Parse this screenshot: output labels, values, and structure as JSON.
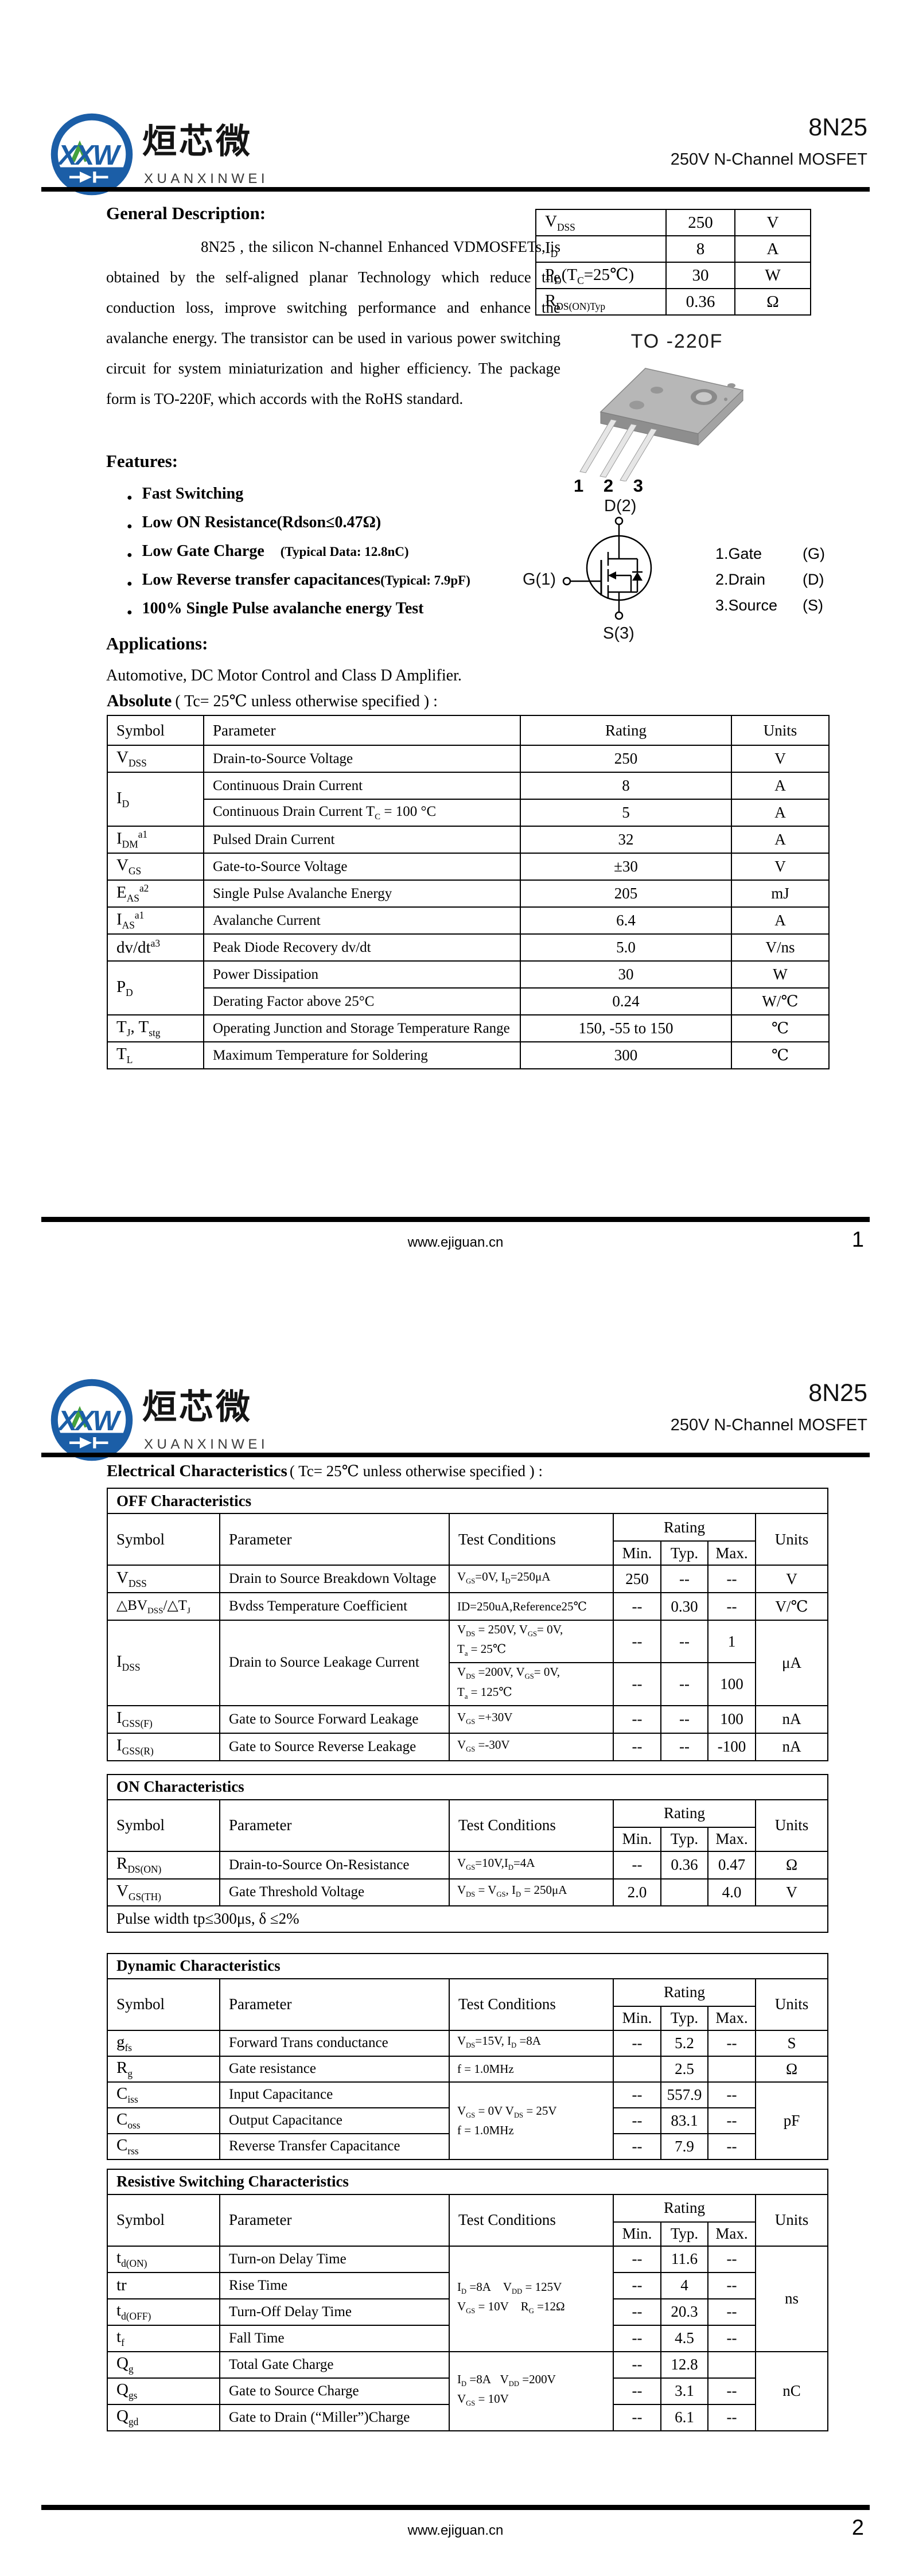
{
  "header": {
    "brand_cn": "烜芯微",
    "brand_en": "XUANXINWEI",
    "logo_text": "XXW",
    "part_number": "8N25",
    "subtitle": "250V N-Channel MOSFET"
  },
  "footer": {
    "url": "www.ejiguan.cn"
  },
  "page1": {
    "page_number": "1",
    "general_title": "General Description:",
    "general_text": "8N25 , the silicon N-channel Enhanced VDMOSFETs, is obtained by the self-aligned planar Technology which reduce the conduction loss, improve switching performance and enhance the avalanche energy. The transistor can be used in various power switching circuit for system miniaturization and higher efficiency. The package form is TO-220F, which accords with the RoHS standard.",
    "features_title": "Features:",
    "features": [
      "Fast Switching",
      "Low ON Resistance(Rdson≤0.47Ω)",
      "Low Gate Charge&nbsp;&nbsp;&nbsp;&nbsp;<span class=\"fsm\">(Typical Data: 12.8nC)</span>",
      "Low Reverse transfer capacitances<span class=\"fsm\">(Typical: 7.9pF)</span>",
      "100% Single Pulse avalanche energy Test"
    ],
    "applications_title": "Applications:",
    "applications_text": "Automotive, DC Motor Control and Class D Amplifier.",
    "absolute_title": "Absolute",
    "absolute_cond": "( Tc= 25℃  unless otherwise specified ) :",
    "package": {
      "name": "TO -220F",
      "pins": "1 2 3",
      "drain": "D(2)",
      "gate": "G(1)",
      "source": "S(3)",
      "legend": [
        {
          "pin": "1.Gate",
          "sym": "(G)"
        },
        {
          "pin": "2.Drain",
          "sym": "(D)"
        },
        {
          "pin": "3.Source",
          "sym": "(S)"
        }
      ]
    },
    "quick_table": {
      "cols": [
        227,
        120,
        132
      ],
      "rows": [
        {
          "h": 46,
          "cells": [
            {
              "t": "V<sub>DSS</sub>",
              "cl": "sym"
            },
            "250",
            "V"
          ]
        },
        {
          "h": 46,
          "cells": [
            {
              "t": "I<sub>D</sub>",
              "cl": "sym"
            },
            "8",
            "A"
          ]
        },
        {
          "h": 46,
          "cells": [
            {
              "t": "P<sub>D</sub>(T<sub>C</sub>=25℃)",
              "cl": "sym"
            },
            "30",
            "W"
          ]
        },
        {
          "h": 46,
          "cells": [
            {
              "t": "R<sub>DS(ON)Typ</sub>",
              "cl": "sym"
            },
            "0.36",
            "Ω"
          ]
        }
      ]
    },
    "absolute_table": {
      "cols": [
        168,
        552,
        368,
        170
      ],
      "rows": [
        {
          "h": 52,
          "cells": [
            {
              "t": "Symbol",
              "cl": "hdl"
            },
            {
              "t": "Parameter",
              "cl": "hdl"
            },
            "Rating",
            "Units"
          ]
        },
        {
          "h": 47,
          "cells": [
            {
              "t": "V<sub>DSS</sub>",
              "cl": "sym"
            },
            {
              "t": "Drain-to-Source Voltage",
              "cl": "par"
            },
            "250",
            "V"
          ]
        },
        {
          "h": 47,
          "cells": [
            {
              "t": "I<sub>D</sub>",
              "cl": "sym",
              "rs": 2
            },
            {
              "t": "Continuous Drain Current",
              "cl": "par"
            },
            "8",
            "A"
          ]
        },
        {
          "h": 47,
          "cells": [
            {
              "t": "Continuous Drain Current T<sub>C</sub> = 100 °C",
              "cl": "par"
            },
            "5",
            "A"
          ]
        },
        {
          "h": 47,
          "cells": [
            {
              "t": "I<sub>DM</sub><sup>a1</sup>",
              "cl": "sym"
            },
            {
              "t": "Pulsed Drain Current",
              "cl": "par"
            },
            "32",
            "A"
          ]
        },
        {
          "h": 47,
          "cells": [
            {
              "t": "V<sub>GS</sub>",
              "cl": "sym"
            },
            {
              "t": "Gate-to-Source Voltage",
              "cl": "par"
            },
            "±30",
            "V"
          ]
        },
        {
          "h": 47,
          "cells": [
            {
              "t": "E<sub>AS</sub><sup>a2</sup>",
              "cl": "sym"
            },
            {
              "t": "Single Pulse Avalanche Energy",
              "cl": "par"
            },
            "205",
            "mJ"
          ]
        },
        {
          "h": 47,
          "cells": [
            {
              "t": "I<sub>AS</sub><sup>a1</sup>",
              "cl": "sym"
            },
            {
              "t": "Avalanche Current",
              "cl": "par"
            },
            "6.4",
            "A"
          ]
        },
        {
          "h": 47,
          "cells": [
            {
              "t": "dv/dt<sup>a3</sup>",
              "cl": "sym"
            },
            {
              "t": "Peak Diode Recovery dv/dt",
              "cl": "par"
            },
            "5.0",
            "V/ns"
          ]
        },
        {
          "h": 47,
          "cells": [
            {
              "t": "P<sub>D</sub>",
              "cl": "sym",
              "rs": 2
            },
            {
              "t": "Power Dissipation",
              "cl": "par"
            },
            "30",
            "W"
          ]
        },
        {
          "h": 47,
          "cells": [
            {
              "t": "Derating Factor above 25°C",
              "cl": "par"
            },
            "0.24",
            "W/℃"
          ]
        },
        {
          "h": 47,
          "cells": [
            {
              "t": "T<sub>J</sub>,  T<sub>stg</sub>",
              "cl": "sym"
            },
            {
              "t": "Operating Junction and Storage Temperature Range",
              "cl": "par"
            },
            "150,  -55 to 150",
            "℃"
          ]
        },
        {
          "h": 47,
          "cells": [
            {
              "t": "T<sub>L</sub>",
              "cl": "sym"
            },
            {
              "t": "Maximum Temperature for Soldering",
              "cl": "par"
            },
            "300",
            "℃"
          ]
        }
      ]
    }
  },
  "page2": {
    "page_number": "2",
    "elec_title": "Electrical Characteristics",
    "elec_cond": "( Tc= 25℃  unless otherwise specified ) :",
    "off_table": {
      "cols": [
        196,
        400,
        286,
        83,
        82,
        83,
        126
      ],
      "rows": [
        {
          "h": 44,
          "cells": [
            {
              "t": "OFF Characteristics",
              "cs": 7,
              "cl": "title"
            }
          ]
        },
        {
          "h": 48,
          "cells": [
            {
              "t": "Symbol",
              "cl": "hdl",
              "rs": 2
            },
            {
              "t": "Parameter",
              "cl": "hdl",
              "rs": 2
            },
            {
              "t": "Test Conditions",
              "cl": "hdl",
              "rs": 2
            },
            {
              "t": "Rating",
              "cs": 3
            },
            {
              "t": "Units",
              "rs": 2
            }
          ]
        },
        {
          "h": 42,
          "cells": [
            "Min.",
            "Typ.",
            "Max."
          ]
        },
        {
          "h": 48,
          "cells": [
            {
              "t": "V<sub>DSS</sub>",
              "cl": "sym"
            },
            {
              "t": "Drain to Source Breakdown Voltage",
              "cl": "par"
            },
            {
              "t": "V<sub>GS</sub>=0V, I<sub>D</sub>=250μA",
              "cl": "cond"
            },
            "250",
            "--",
            "--",
            "V"
          ]
        },
        {
          "h": 48,
          "cells": [
            {
              "t": "△BV<sub>DSS</sub>/△T<sub>J</sub>",
              "cl": "sym fs26"
            },
            {
              "t": "Bvdss Temperature Coefficient",
              "cl": "par"
            },
            {
              "t": "ID=250uA,Reference25℃",
              "cl": "cond"
            },
            "--",
            "0.30",
            "--",
            "V/℃"
          ]
        },
        {
          "h": 62,
          "cells": [
            {
              "t": "I<sub>DSS</sub>",
              "cl": "sym",
              "rs": 2
            },
            {
              "t": "Drain to Source Leakage Current",
              "cl": "par",
              "rs": 2
            },
            {
              "t": "V<sub>DS</sub> = 250V, V<sub>GS</sub>= 0V,<br>T<sub>a</sub> = 25℃",
              "cl": "cond"
            },
            "--",
            "--",
            "1",
            {
              "t": "μA",
              "rs": 2
            }
          ]
        },
        {
          "h": 62,
          "cells": [
            {
              "t": "V<sub>DS</sub> =200V, V<sub>GS</sub>= 0V,<br>T<sub>a</sub> = 125℃",
              "cl": "cond"
            },
            "--",
            "--",
            "100"
          ]
        },
        {
          "h": 48,
          "cells": [
            {
              "t": "I<sub>GSS(F)</sub>",
              "cl": "sym"
            },
            {
              "t": "Gate to Source Forward Leakage",
              "cl": "par"
            },
            {
              "t": "V<sub>GS</sub> =+30V",
              "cl": "cond"
            },
            "--",
            "--",
            "100",
            "nA"
          ]
        },
        {
          "h": 48,
          "cells": [
            {
              "t": "I<sub>GSS(R)</sub>",
              "cl": "sym"
            },
            {
              "t": "Gate to Source Reverse Leakage",
              "cl": "par"
            },
            {
              "t": "V<sub>GS</sub> =-30V",
              "cl": "cond"
            },
            "--",
            "--",
            "-100",
            "nA"
          ]
        }
      ]
    },
    "on_table": {
      "cols": [
        196,
        400,
        286,
        83,
        82,
        83,
        126
      ],
      "rows": [
        {
          "h": 44,
          "cells": [
            {
              "t": "ON Characteristics",
              "cs": 7,
              "cl": "title"
            }
          ]
        },
        {
          "h": 48,
          "cells": [
            {
              "t": "Symbol",
              "cl": "hdl",
              "rs": 2
            },
            {
              "t": "Parameter",
              "cl": "hdl",
              "rs": 2
            },
            {
              "t": "Test Conditions",
              "cl": "hdl",
              "rs": 2
            },
            {
              "t": "Rating",
              "cs": 3
            },
            {
              "t": "Units",
              "rs": 2
            }
          ]
        },
        {
          "h": 42,
          "cells": [
            "Min.",
            "Typ.",
            "Max."
          ]
        },
        {
          "h": 48,
          "cells": [
            {
              "t": "R<sub>DS(ON)</sub>",
              "cl": "sym"
            },
            {
              "t": "Drain-to-Source On-Resistance",
              "cl": "par"
            },
            {
              "t": "V<sub>GS</sub>=10V,I<sub>D</sub>=4A",
              "cl": "cond"
            },
            "--",
            "0.36",
            "0.47",
            "Ω"
          ]
        },
        {
          "h": 47,
          "cells": [
            {
              "t": "V<sub>GS(TH)</sub>",
              "cl": "sym"
            },
            {
              "t": "Gate Threshold Voltage",
              "cl": "par"
            },
            {
              "t": "V<sub>DS</sub> = V<sub>GS</sub>, I<sub>D</sub> = 250μA",
              "cl": "cond"
            },
            "2.0",
            "",
            "4.0",
            "V"
          ]
        },
        {
          "h": 46,
          "cells": [
            {
              "t": "Pulse width tp≤300μs, δ ≤2%",
              "cs": 7,
              "cl": "note"
            }
          ]
        }
      ]
    },
    "dyn_table": {
      "cols": [
        196,
        400,
        286,
        83,
        82,
        83,
        126
      ],
      "rows": [
        {
          "h": 44,
          "cells": [
            {
              "t": "Dynamic Characteristics",
              "cs": 7,
              "cl": "title"
            }
          ]
        },
        {
          "h": 48,
          "cells": [
            {
              "t": "Symbol",
              "cl": "hdl",
              "rs": 2
            },
            {
              "t": "Parameter",
              "cl": "hdl",
              "rs": 2
            },
            {
              "t": "Test Conditions",
              "cl": "hdl",
              "rs": 2
            },
            {
              "t": "Rating",
              "cs": 3
            },
            {
              "t": "Units",
              "rs": 2
            }
          ]
        },
        {
          "h": 42,
          "cells": [
            "Min.",
            "Typ.",
            "Max."
          ]
        },
        {
          "h": 45,
          "cells": [
            {
              "t": "g<sub>fs</sub>",
              "cl": "sym"
            },
            {
              "t": "Forward Trans conductance",
              "cl": "par"
            },
            {
              "t": "V<sub>DS</sub>=15V, I<sub>D</sub> =8A",
              "cl": "cond"
            },
            "--",
            "5.2",
            "--",
            "S"
          ]
        },
        {
          "h": 45,
          "cells": [
            {
              "t": "R<sub>g</sub>",
              "cl": "sym"
            },
            {
              "t": "Gate resistance",
              "cl": "par"
            },
            {
              "t": "f = 1.0MHz",
              "cl": "cond"
            },
            "",
            "2.5",
            "",
            "Ω"
          ]
        },
        {
          "h": 45,
          "cells": [
            {
              "t": "C<sub>iss</sub>",
              "cl": "sym"
            },
            {
              "t": "Input Capacitance",
              "cl": "par"
            },
            {
              "t": "V<sub>GS</sub> = 0V V<sub>DS</sub> = 25V<br>f = 1.0MHz",
              "cl": "cond",
              "rs": 3
            },
            "--",
            "557.9",
            "--",
            {
              "t": "pF",
              "rs": 3
            }
          ]
        },
        {
          "h": 45,
          "cells": [
            {
              "t": "C<sub>oss</sub>",
              "cl": "sym"
            },
            {
              "t": "Output Capacitance",
              "cl": "par"
            },
            "--",
            "83.1",
            "--"
          ]
        },
        {
          "h": 45,
          "cells": [
            {
              "t": "C<sub>rss</sub>",
              "cl": "sym"
            },
            {
              "t": "Reverse Transfer Capacitance",
              "cl": "par"
            },
            "--",
            "7.9",
            "--"
          ]
        }
      ]
    },
    "res_table": {
      "cols": [
        196,
        400,
        286,
        83,
        82,
        83,
        126
      ],
      "rows": [
        {
          "h": 44,
          "cells": [
            {
              "t": "Resistive Switching Characteristics",
              "cs": 7,
              "cl": "title"
            }
          ]
        },
        {
          "h": 48,
          "cells": [
            {
              "t": "Symbol",
              "cl": "hdl",
              "rs": 2
            },
            {
              "t": "Parameter",
              "cl": "hdl",
              "rs": 2
            },
            {
              "t": "Test Conditions",
              "cl": "hdl",
              "rs": 2
            },
            {
              "t": "Rating",
              "cs": 3
            },
            {
              "t": "Units",
              "rs": 2
            }
          ]
        },
        {
          "h": 42,
          "cells": [
            "Min.",
            "Typ.",
            "Max."
          ]
        },
        {
          "h": 46,
          "cells": [
            {
              "t": "t<sub>d(ON)</sub>",
              "cl": "sym"
            },
            {
              "t": "Turn-on Delay Time",
              "cl": "par"
            },
            {
              "t": "I<sub>D</sub> =8A&nbsp;&nbsp;&nbsp;&nbsp;V<sub>DD</sub> = 125V<br>V<sub>GS</sub> = 10V&nbsp;&nbsp;&nbsp;&nbsp;R<sub>G</sub> =12Ω",
              "cl": "cond",
              "rs": 4
            },
            "--",
            "11.6",
            "--",
            {
              "t": "ns",
              "rs": 4
            }
          ]
        },
        {
          "h": 46,
          "cells": [
            {
              "t": "tr",
              "cl": "sym"
            },
            {
              "t": "Rise Time",
              "cl": "par"
            },
            "--",
            "4",
            "--"
          ]
        },
        {
          "h": 46,
          "cells": [
            {
              "t": "t<sub>d(OFF)</sub>",
              "cl": "sym"
            },
            {
              "t": "Turn-Off Delay Time",
              "cl": "par"
            },
            "--",
            "20.3",
            "--"
          ]
        },
        {
          "h": 46,
          "cells": [
            {
              "t": "t<sub>f</sub>",
              "cl": "sym"
            },
            {
              "t": "Fall Time",
              "cl": "par"
            },
            "--",
            "4.5",
            "--"
          ]
        },
        {
          "h": 46,
          "cells": [
            {
              "t": "Q<sub>g</sub>",
              "cl": "sym"
            },
            {
              "t": "Total Gate Charge",
              "cl": "par"
            },
            {
              "t": "I<sub>D</sub> =8A&nbsp;&nbsp;&nbsp;V<sub>DD</sub> =200V<br>V<sub>GS</sub> = 10V",
              "cl": "cond",
              "rs": 3
            },
            "--",
            "12.8",
            "",
            {
              "t": "nC",
              "rs": 3
            }
          ]
        },
        {
          "h": 46,
          "cells": [
            {
              "t": "Q<sub>gs</sub>",
              "cl": "sym"
            },
            {
              "t": "Gate to Source Charge",
              "cl": "par"
            },
            "--",
            "3.1",
            "--"
          ]
        },
        {
          "h": 46,
          "cells": [
            {
              "t": "Q<sub>gd</sub>",
              "cl": "sym"
            },
            {
              "t": "Gate to Drain (“Miller”)Charge",
              "cl": "par"
            },
            "--",
            "6.1",
            "--"
          ]
        }
      ]
    }
  }
}
